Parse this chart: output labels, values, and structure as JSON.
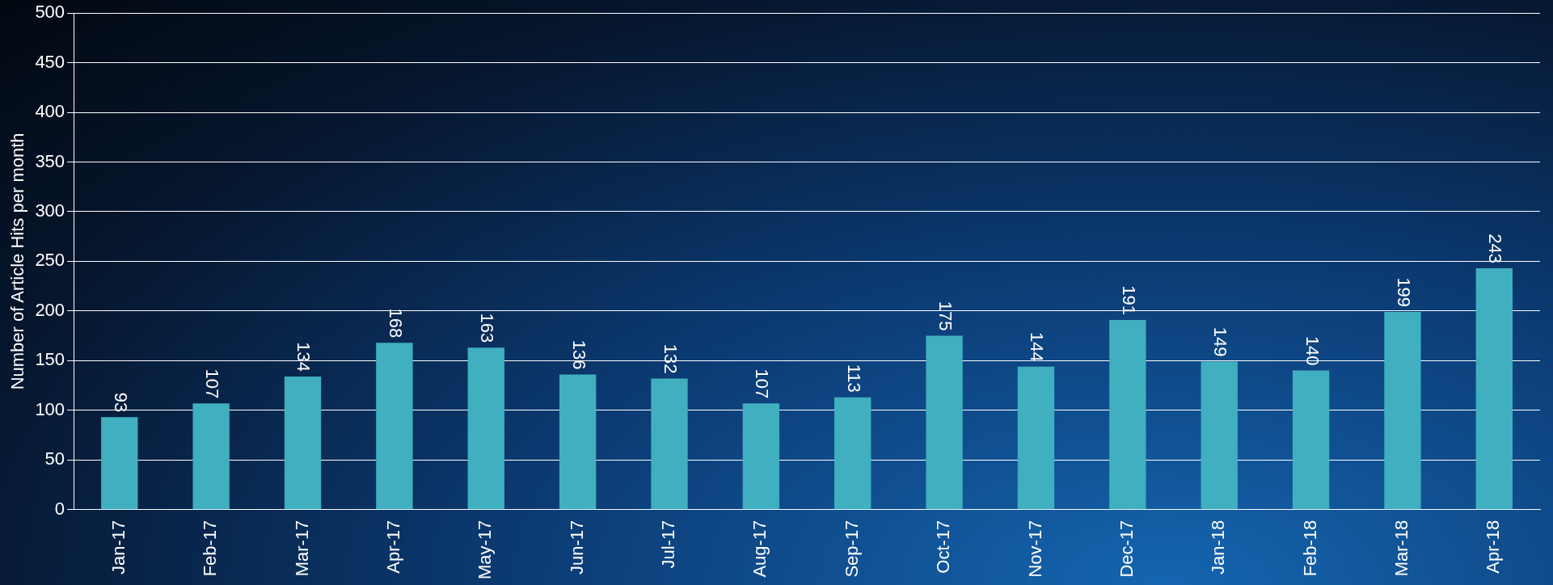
{
  "chart_data": {
    "type": "bar",
    "ylabel": "Number of Article Hits per month",
    "categories": [
      "Jan-17",
      "Feb-17",
      "Mar-17",
      "Apr-17",
      "May-17",
      "Jun-17",
      "Jul-17",
      "Aug-17",
      "Sep-17",
      "Oct-17",
      "Nov-17",
      "Dec-17",
      "Jan-18",
      "Feb-18",
      "Mar-18",
      "Apr-18"
    ],
    "values": [
      93,
      107,
      134,
      168,
      163,
      136,
      132,
      107,
      113,
      175,
      144,
      191,
      149,
      140,
      199,
      243
    ],
    "color": "#40afbf",
    "ylim": [
      0,
      500
    ],
    "yticks": [
      0,
      50,
      100,
      150,
      200,
      250,
      300,
      350,
      400,
      450,
      500
    ],
    "grid": "y",
    "legend": false,
    "data_labels": true
  }
}
